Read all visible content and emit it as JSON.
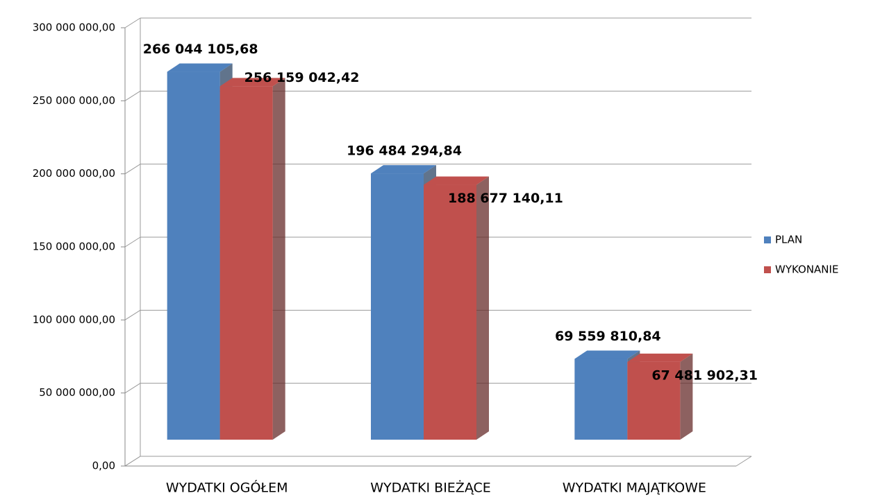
{
  "chart_data": {
    "type": "bar3d",
    "categories": [
      "WYDATKI OGÓŁEM",
      "WYDATKI BIEŻĄCE",
      "WYDATKI MAJĄTKOWE"
    ],
    "series": [
      {
        "name": "PLAN",
        "color": "#4f81bd",
        "values": [
          266044105.68,
          196484294.84,
          69559810.84
        ],
        "value_labels": [
          "266 044 105,68",
          "196 484 294,84",
          "69 559 810,84"
        ]
      },
      {
        "name": "WYKONANIE",
        "color": "#c0504d",
        "values": [
          256159042.42,
          188677140.11,
          67481902.31
        ],
        "value_labels": [
          "256 159 042,42",
          "188 677 140,11",
          "67 481 902,31"
        ]
      }
    ],
    "ylim": [
      0,
      300000000
    ],
    "yticks": [
      {
        "value": 0,
        "label": "0,00"
      },
      {
        "value": 50000000,
        "label": "50 000 000,00"
      },
      {
        "value": 100000000,
        "label": "100 000 000,00"
      },
      {
        "value": 150000000,
        "label": "150 000 000,00"
      },
      {
        "value": 200000000,
        "label": "200 000 000,00"
      },
      {
        "value": 250000000,
        "label": "250 000 000,00"
      },
      {
        "value": 300000000,
        "label": "300 000 000,00"
      }
    ],
    "grid": true,
    "legend": "right"
  }
}
